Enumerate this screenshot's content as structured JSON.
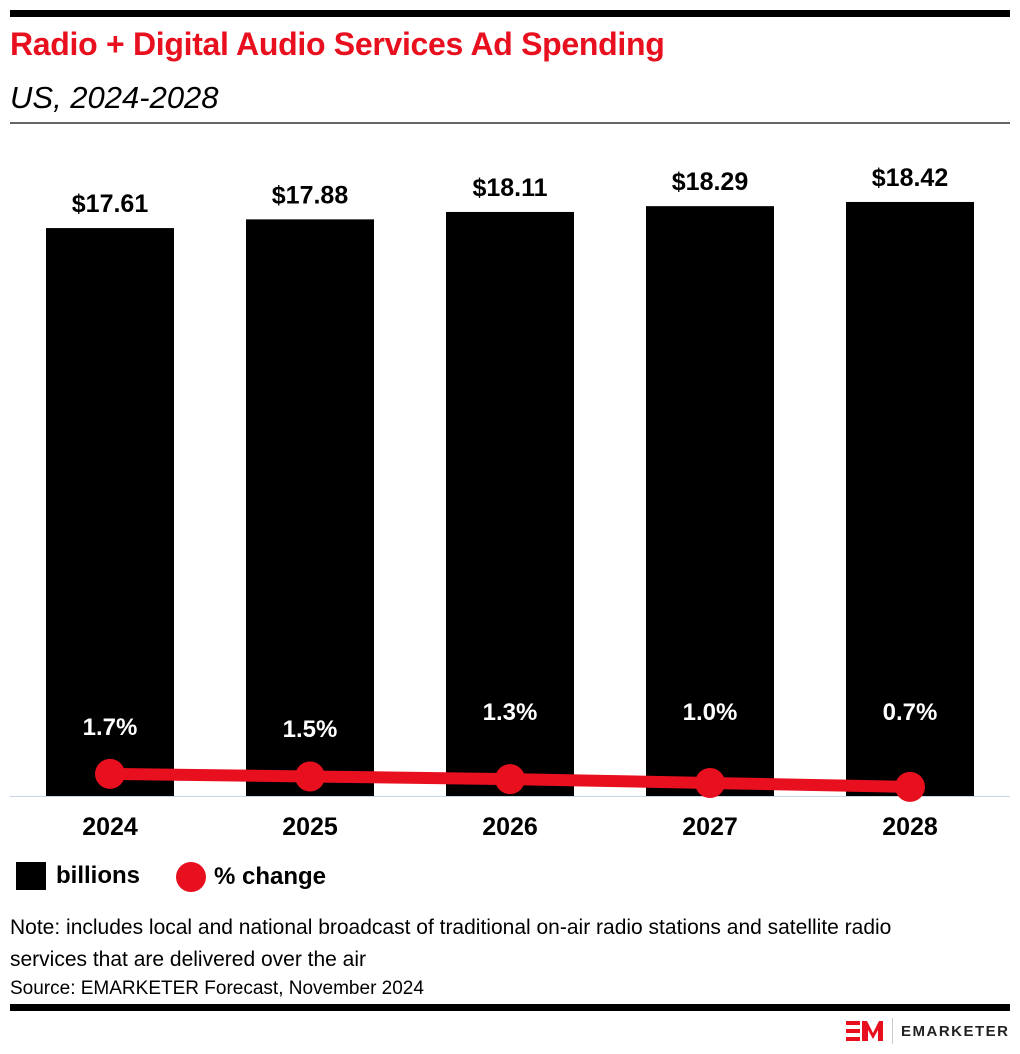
{
  "header": {
    "title": "Radio + Digital Audio Services Ad Spending",
    "subtitle": "US, 2024-2028"
  },
  "chart_data": {
    "type": "bar",
    "categories": [
      "2024",
      "2025",
      "2026",
      "2027",
      "2028"
    ],
    "series": [
      {
        "name": "billions",
        "type": "bar",
        "values": [
          17.61,
          17.88,
          18.11,
          18.29,
          18.42
        ],
        "labels": [
          "$17.61",
          "$17.88",
          "$18.11",
          "$18.29",
          "$18.42"
        ],
        "color": "#000000"
      },
      {
        "name": "% change",
        "type": "line",
        "values": [
          1.7,
          1.5,
          1.3,
          1.0,
          0.7
        ],
        "labels": [
          "1.7%",
          "1.5%",
          "1.3%",
          "1.0%",
          "0.7%"
        ],
        "color": "#e8101e"
      }
    ],
    "ylim": [
      0,
      20
    ],
    "grid": false,
    "legend": "bottom-left"
  },
  "legend": {
    "bar_label": "billions",
    "line_label": "% change"
  },
  "footer": {
    "note": "Note: includes local and national broadcast of traditional on-air radio stations and satellite radio services that are delivered over the air",
    "source": "Source: EMARKETER Forecast, November 2024",
    "logo_text": "EMARKETER"
  },
  "colors": {
    "accent": "#e8101e",
    "bar": "#000000"
  }
}
